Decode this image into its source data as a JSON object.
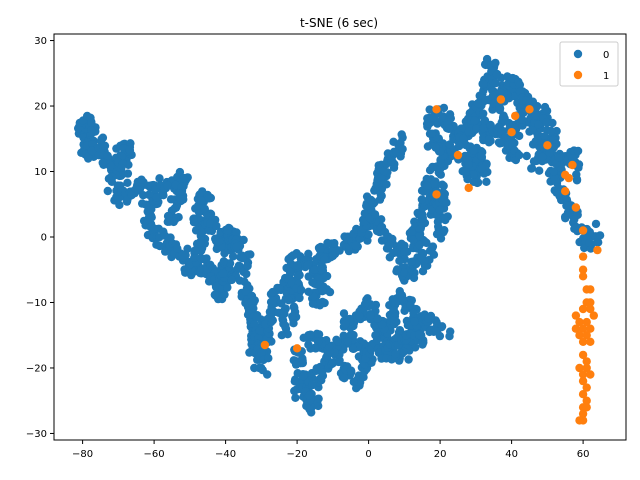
{
  "chart_data": {
    "type": "scatter",
    "title": "t-SNE (6 sec)",
    "xlabel": "",
    "ylabel": "",
    "xlim": [
      -88,
      72
    ],
    "ylim": [
      -31,
      31
    ],
    "xticks": [
      -80,
      -60,
      -40,
      -20,
      0,
      20,
      40,
      60
    ],
    "yticks": [
      -30,
      -20,
      -10,
      0,
      10,
      20,
      30
    ],
    "grid": false,
    "legend_position": "top-right",
    "series": [
      {
        "name": "0",
        "color": "#1f77b4",
        "path": [
          [
            -80,
            14
          ],
          [
            -80,
            18
          ],
          [
            -77,
            17
          ],
          [
            -79,
            12
          ],
          [
            -75,
            14
          ],
          [
            -73,
            11
          ],
          [
            -70,
            12
          ],
          [
            -67,
            14
          ],
          [
            -70,
            9
          ],
          [
            -72,
            8
          ],
          [
            -69,
            6
          ],
          [
            -66,
            7
          ],
          [
            -63,
            8
          ],
          [
            -60,
            6
          ],
          [
            -62,
            4
          ],
          [
            -60,
            1
          ],
          [
            -58,
            0
          ],
          [
            -55,
            -2
          ],
          [
            -52,
            -3
          ],
          [
            -49,
            -5
          ],
          [
            -46,
            -4
          ],
          [
            -43,
            -6
          ],
          [
            -42,
            -9
          ],
          [
            -40,
            -6
          ],
          [
            -37,
            -5
          ],
          [
            -35,
            -8
          ],
          [
            -33,
            -11
          ],
          [
            -31,
            -14
          ],
          [
            -30,
            -17
          ],
          [
            -28,
            -14
          ],
          [
            -26,
            -10
          ],
          [
            -23,
            -7
          ],
          [
            -21,
            -4
          ],
          [
            -18,
            -3
          ],
          [
            -16,
            -5
          ],
          [
            -14,
            -4
          ],
          [
            -12,
            -2
          ],
          [
            -9,
            -2
          ],
          [
            -7,
            -1
          ],
          [
            -4,
            -1
          ],
          [
            -1,
            1
          ],
          [
            1,
            3
          ],
          [
            3,
            1
          ],
          [
            5,
            0
          ],
          [
            7,
            -2
          ],
          [
            9,
            -3
          ],
          [
            11,
            -2
          ],
          [
            13,
            1
          ],
          [
            15,
            4
          ],
          [
            17,
            8
          ],
          [
            19,
            10
          ],
          [
            21,
            12
          ],
          [
            23,
            14
          ],
          [
            26,
            16
          ],
          [
            29,
            17
          ],
          [
            31,
            20
          ],
          [
            33,
            23
          ],
          [
            34,
            27
          ],
          [
            36,
            24
          ],
          [
            38,
            22
          ],
          [
            40,
            24
          ],
          [
            42,
            22
          ],
          [
            44,
            20
          ],
          [
            46,
            17
          ],
          [
            48,
            15
          ],
          [
            50,
            13
          ],
          [
            52,
            10
          ],
          [
            54,
            7
          ],
          [
            56,
            4
          ],
          [
            58,
            2
          ],
          [
            60,
            0
          ],
          [
            62,
            -1
          ],
          [
            64,
            1
          ]
        ],
        "branches": [
          [
            [
              -60,
              6
            ],
            [
              -57,
              8
            ],
            [
              -54,
              7
            ],
            [
              -52,
              9
            ],
            [
              -54,
              4
            ],
            [
              -56,
              2
            ]
          ],
          [
            [
              -49,
              -5
            ],
            [
              -47,
              -1
            ],
            [
              -48,
              4
            ],
            [
              -46,
              6
            ],
            [
              -44,
              2
            ],
            [
              -42,
              0
            ],
            [
              -40,
              -2
            ]
          ],
          [
            [
              -40,
              -6
            ],
            [
              -38,
              0
            ],
            [
              -39,
              2
            ],
            [
              -36,
              -2
            ],
            [
              -34,
              -4
            ]
          ],
          [
            [
              -33,
              -11
            ],
            [
              -31,
              -14
            ],
            [
              -32,
              -18
            ],
            [
              -30,
              -19
            ],
            [
              -28,
              -20
            ]
          ],
          [
            [
              -21,
              -4
            ],
            [
              -20,
              -9
            ],
            [
              -22,
              -12
            ],
            [
              -24,
              -15
            ]
          ],
          [
            [
              -20,
              -17
            ],
            [
              -19,
              -21
            ],
            [
              -20,
              -23
            ],
            [
              -18,
              -24
            ],
            [
              -16,
              -26
            ],
            [
              -15,
              -22
            ],
            [
              -13,
              -20
            ],
            [
              -10,
              -19
            ],
            [
              -8,
              -20
            ],
            [
              -6,
              -21
            ],
            [
              -4,
              -22
            ],
            [
              -2,
              -20
            ],
            [
              0,
              -18
            ],
            [
              -3,
              -16
            ],
            [
              -6,
              -16
            ],
            [
              -9,
              -17
            ],
            [
              -12,
              -17
            ],
            [
              -15,
              -16
            ],
            [
              -18,
              -16
            ]
          ],
          [
            [
              0,
              -18
            ],
            [
              2,
              -16
            ],
            [
              4,
              -14
            ],
            [
              6,
              -12
            ],
            [
              8,
              -10
            ],
            [
              10,
              -9
            ],
            [
              11,
              -11
            ],
            [
              13,
              -13
            ],
            [
              14,
              -15
            ],
            [
              12,
              -17
            ],
            [
              9,
              -18
            ],
            [
              6,
              -17
            ],
            [
              3,
              -13
            ],
            [
              1,
              -10
            ],
            [
              -2,
              -12
            ],
            [
              -5,
              -14
            ],
            [
              -7,
              -12
            ]
          ],
          [
            [
              3,
              -16
            ],
            [
              5,
              -18
            ],
            [
              7,
              -17
            ],
            [
              9,
              -15
            ],
            [
              12,
              -14
            ],
            [
              15,
              -14
            ],
            [
              17,
              -13
            ],
            [
              20,
              -14
            ],
            [
              22,
              -14
            ]
          ],
          [
            [
              -1,
              1
            ],
            [
              1,
              6
            ],
            [
              3,
              7
            ],
            [
              4,
              10
            ],
            [
              6,
              11
            ],
            [
              8,
              13
            ],
            [
              10,
              15
            ]
          ],
          [
            [
              -12,
              -2
            ],
            [
              -14,
              -6
            ],
            [
              -12,
              -8
            ],
            [
              -14,
              -10
            ],
            [
              -16,
              -8
            ]
          ],
          [
            [
              13,
              1
            ],
            [
              15,
              -1
            ],
            [
              17,
              -2
            ],
            [
              15,
              -4
            ],
            [
              12,
              -5
            ],
            [
              10,
              -6
            ],
            [
              8,
              -4
            ]
          ],
          [
            [
              17,
              8
            ],
            [
              19,
              4
            ],
            [
              20,
              7
            ],
            [
              21,
              2
            ],
            [
              19,
              0
            ]
          ],
          [
            [
              21,
              12
            ],
            [
              18,
              15
            ],
            [
              17,
              18
            ],
            [
              20,
              19
            ],
            [
              23,
              17
            ],
            [
              21,
              16
            ]
          ],
          [
            [
              26,
              16
            ],
            [
              27,
              13
            ],
            [
              29,
              11
            ],
            [
              31,
              13
            ],
            [
              33,
              11
            ],
            [
              31,
              9
            ],
            [
              28,
              10
            ],
            [
              26,
              12
            ]
          ],
          [
            [
              33,
              23
            ],
            [
              35,
              21
            ],
            [
              37,
              19
            ],
            [
              39,
              18
            ],
            [
              41,
              16
            ],
            [
              43,
              18
            ],
            [
              45,
              20
            ],
            [
              47,
              18
            ]
          ],
          [
            [
              29,
              17
            ],
            [
              31,
              18
            ],
            [
              33,
              16
            ],
            [
              35,
              15
            ],
            [
              37,
              16
            ],
            [
              39,
              14
            ],
            [
              41,
              12
            ],
            [
              43,
              13
            ]
          ],
          [
            [
              46,
              17
            ],
            [
              48,
              19
            ],
            [
              50,
              17
            ],
            [
              52,
              15
            ],
            [
              50,
              14
            ],
            [
              48,
              12
            ],
            [
              46,
              11
            ]
          ],
          [
            [
              52,
              10
            ],
            [
              54,
              12
            ],
            [
              56,
              13
            ],
            [
              58,
              11
            ],
            [
              57,
              9
            ]
          ]
        ]
      },
      {
        "name": "1",
        "color": "#ff7f0e",
        "points": [
          [
            -29,
            -16.5
          ],
          [
            -20,
            -17
          ],
          [
            19,
            19.5
          ],
          [
            19,
            6.5
          ],
          [
            25,
            12.5
          ],
          [
            28,
            7.5
          ],
          [
            37,
            21
          ],
          [
            41,
            18.5
          ],
          [
            40,
            16
          ],
          [
            45,
            19.5
          ],
          [
            50,
            14
          ],
          [
            55,
            9.5
          ],
          [
            56,
            9
          ],
          [
            57,
            11
          ],
          [
            55,
            7
          ],
          [
            58,
            4.5
          ],
          [
            60,
            1
          ],
          [
            64,
            -2
          ],
          [
            60,
            -3
          ],
          [
            60,
            -5
          ],
          [
            60,
            -6
          ],
          [
            61,
            -8
          ],
          [
            62,
            -8
          ],
          [
            61,
            -10
          ],
          [
            62,
            -10
          ],
          [
            60,
            -11
          ],
          [
            62,
            -11
          ],
          [
            58,
            -12
          ],
          [
            59,
            -13
          ],
          [
            61,
            -13
          ],
          [
            63,
            -12
          ],
          [
            58,
            -14
          ],
          [
            60,
            -14
          ],
          [
            62,
            -14
          ],
          [
            59,
            -15
          ],
          [
            61,
            -15
          ],
          [
            60,
            -16
          ],
          [
            62,
            -16
          ],
          [
            60,
            -18
          ],
          [
            61,
            -19
          ],
          [
            59,
            -20
          ],
          [
            61,
            -20
          ],
          [
            60,
            -21
          ],
          [
            62,
            -21
          ],
          [
            60,
            -22
          ],
          [
            61,
            -23
          ],
          [
            60,
            -24
          ],
          [
            61,
            -25
          ],
          [
            60,
            -26
          ],
          [
            61,
            -26
          ],
          [
            60,
            -27
          ],
          [
            60,
            -28
          ],
          [
            59,
            -28
          ]
        ]
      }
    ]
  }
}
